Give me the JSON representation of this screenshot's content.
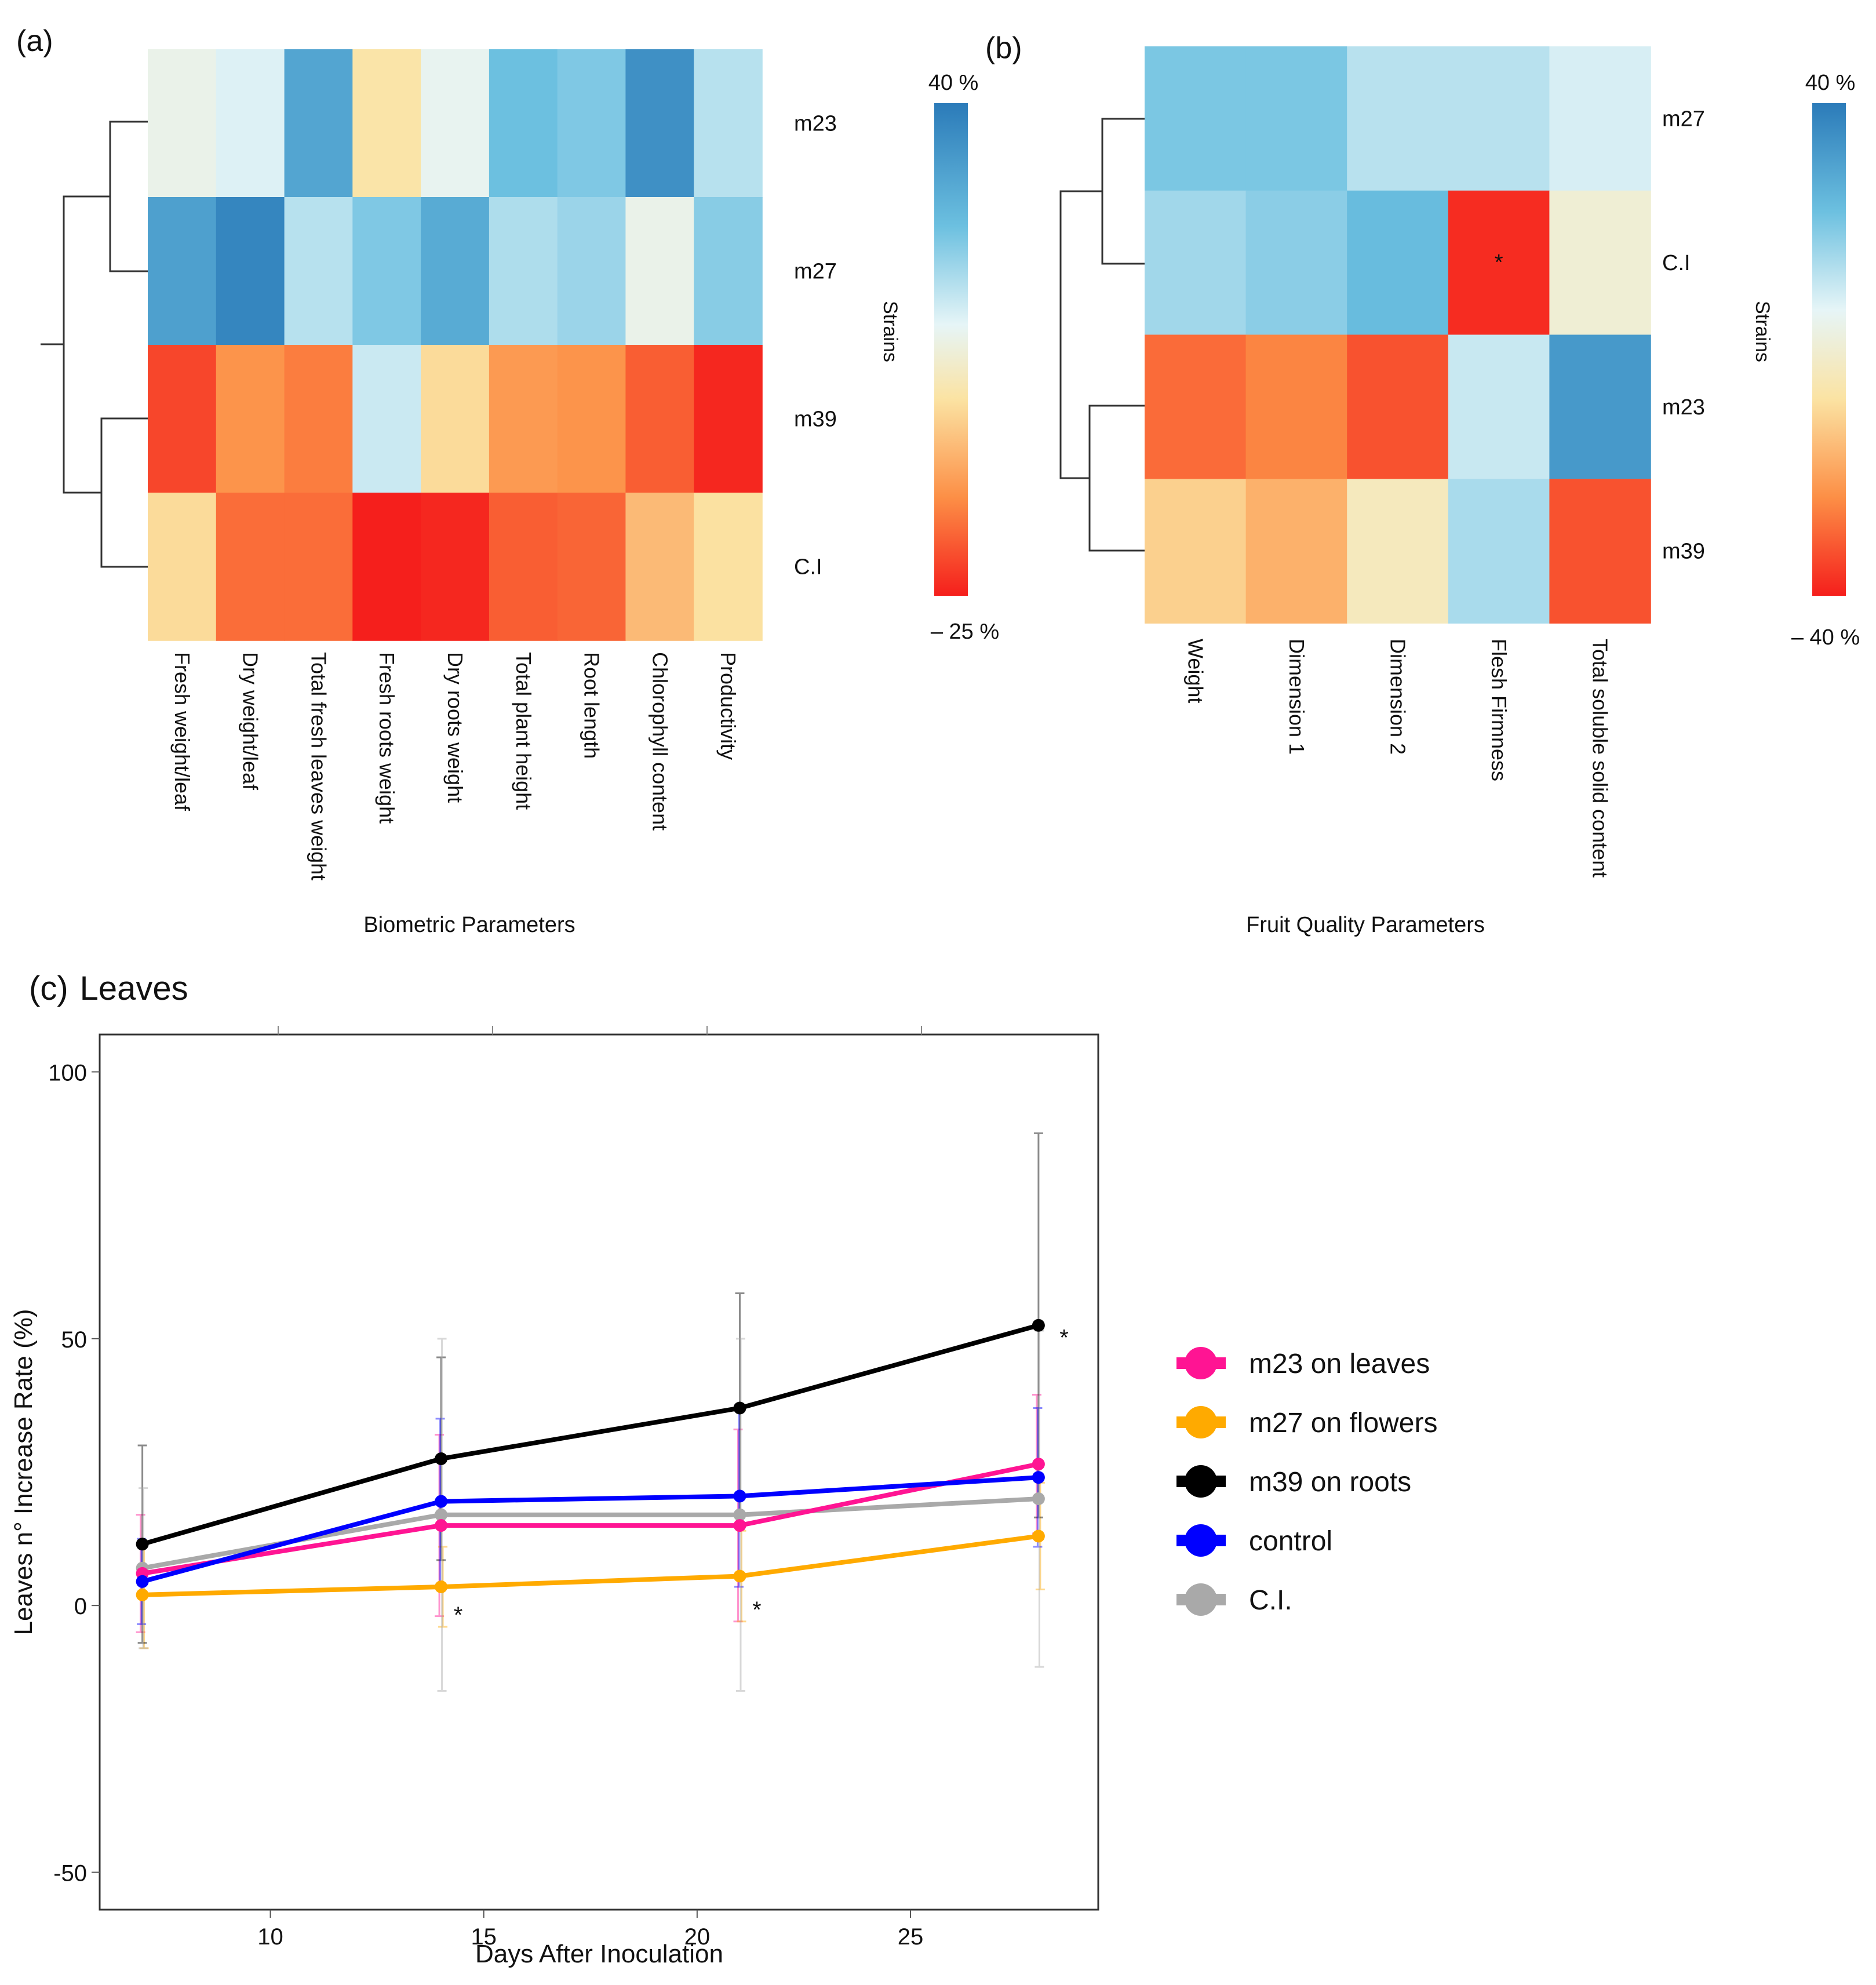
{
  "colors": {
    "scale_blue": "#2b7bb9",
    "scale_mid": "#f3f2cd",
    "scale_red": "#f51f1c",
    "m23": "#ff1493",
    "m27": "#ffaa00",
    "m39": "#000000",
    "control": "#0000ff",
    "ci": "#a9a9a9"
  },
  "chart_data": [
    {
      "type": "heatmap",
      "panel_label": "(a)",
      "xlabel": "Biometric Parameters",
      "ylabel": "Strains",
      "rows": [
        "m23",
        "m27",
        "m39",
        "C.I"
      ],
      "columns": [
        "Fresh weight/leaf",
        "Dry weight/leaf",
        "Total fresh leaves weight",
        "Fresh roots weight",
        "Dry roots weight",
        "Total plant height",
        "Root length",
        "Chlorophyll content",
        "Productivity"
      ],
      "values": [
        [
          12,
          15,
          32,
          3,
          13,
          27,
          25,
          36,
          19
        ],
        [
          33,
          38,
          19,
          25,
          31,
          20,
          22,
          12,
          24
        ],
        [
          -20,
          -10,
          -13,
          17,
          1,
          -9,
          -10,
          -17,
          -24
        ],
        [
          1,
          -15,
          -15,
          -25,
          -24,
          -17,
          -16,
          -4,
          2
        ]
      ],
      "scale_max": 40,
      "scale_min": -25,
      "scale_max_label": "40 %",
      "scale_min_label": "– 25 %"
    },
    {
      "type": "heatmap",
      "panel_label": "(b)",
      "xlabel": "Fruit Quality Parameters",
      "ylabel": "Strains",
      "rows": [
        "m27",
        "C.I",
        "m23",
        "m39"
      ],
      "columns": [
        "Weight",
        "Dimension 1",
        "Dimension 2",
        "Flesh Firmness",
        "Total soluble  solid content"
      ],
      "values": [
        [
          22,
          22,
          14,
          14,
          10
        ],
        [
          17,
          20,
          25,
          -38,
          2
        ],
        [
          -28,
          -24,
          -32,
          12,
          33
        ],
        [
          -10,
          -16,
          -2,
          16,
          -32
        ]
      ],
      "scale_max": 40,
      "scale_min": -40,
      "scale_max_label": "40 %",
      "scale_min_label": "– 40 %",
      "annotations": [
        {
          "row": 1,
          "col": 3,
          "text": "*"
        }
      ]
    },
    {
      "type": "line",
      "panel_label": "(c)",
      "title": "Leaves",
      "xlabel": "Days After Inoculation",
      "ylabel": "Leaves n° Increase Rate (%)",
      "xlim": [
        6,
        29.4
      ],
      "ylim": [
        -57,
        107
      ],
      "xticks": [
        10,
        15,
        20,
        25
      ],
      "yticks": [
        -50,
        0,
        50,
        100
      ],
      "x": [
        7,
        14,
        21,
        28
      ],
      "series": [
        {
          "name": "m23 on leaves",
          "values": [
            6,
            15,
            15,
            26.5
          ],
          "err": [
            11,
            17,
            18,
            13
          ]
        },
        {
          "name": "m27 on flowers",
          "values": [
            2,
            3.5,
            5.5,
            13
          ],
          "err": [
            10,
            7.5,
            8.5,
            10
          ]
        },
        {
          "name": "m39 on roots",
          "values": [
            11.5,
            27.5,
            37,
            52.5
          ],
          "err": [
            18.5,
            19,
            21.5,
            36
          ]
        },
        {
          "name": "control",
          "values": [
            4.5,
            19.5,
            20.5,
            24
          ],
          "err": [
            8,
            15.5,
            17,
            13
          ]
        },
        {
          "name": "C.I.",
          "values": [
            7,
            17,
            17,
            20
          ],
          "err": [
            15,
            33,
            33,
            31.5
          ]
        }
      ],
      "annotations": [
        {
          "x": 14.4,
          "y": 0,
          "text": "*"
        },
        {
          "x": 21.4,
          "y": 1,
          "text": "*"
        },
        {
          "x": 28.6,
          "y": 52,
          "text": "*"
        }
      ]
    }
  ]
}
